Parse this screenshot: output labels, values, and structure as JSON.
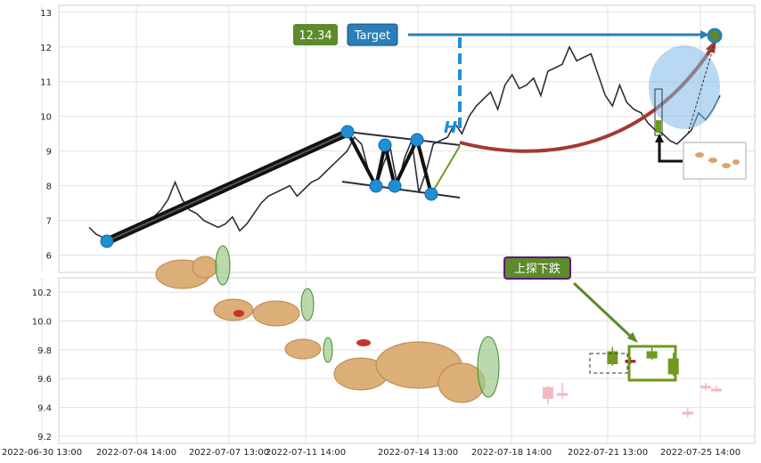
{
  "chart_data": [
    {
      "type": "line",
      "panel": "price",
      "ylim": [
        5.5,
        13.2
      ],
      "yticks": [
        6,
        7,
        8,
        9,
        10,
        11,
        12,
        13
      ],
      "xlim": [
        0,
        176
      ],
      "series": [
        {
          "color": "#2b2f3a",
          "x": [
            0,
            2,
            4,
            6,
            8,
            10,
            12,
            14,
            16,
            18,
            20,
            22,
            24,
            26,
            28,
            30,
            32,
            34,
            36,
            38,
            40,
            42,
            44,
            46,
            48,
            50,
            52,
            54,
            56,
            58,
            60,
            62,
            64,
            66,
            68,
            70,
            72,
            74,
            76,
            78,
            80,
            82,
            84,
            86,
            88,
            90,
            92,
            94,
            96,
            98,
            100,
            102,
            104,
            106,
            108,
            110,
            112,
            114,
            116,
            118,
            120,
            122,
            124,
            126,
            128,
            130,
            132,
            134,
            136,
            138,
            140,
            142,
            144,
            146,
            148,
            150,
            152,
            154,
            156,
            158,
            160,
            162,
            164,
            166,
            168,
            170,
            172,
            174,
            176
          ],
          "values": [
            6.8,
            6.6,
            6.5,
            6.5,
            6.6,
            6.7,
            6.8,
            6.9,
            7.0,
            7.1,
            7.3,
            7.6,
            8.1,
            7.6,
            7.3,
            7.2,
            7.0,
            6.9,
            6.8,
            6.9,
            7.1,
            6.7,
            6.9,
            7.2,
            7.5,
            7.7,
            7.8,
            7.9,
            8.0,
            7.7,
            7.9,
            8.1,
            8.2,
            8.4,
            8.6,
            8.8,
            9.0,
            9.4,
            9.2,
            8.4,
            7.9,
            8.6,
            9.1,
            8.0,
            8.8,
            9.3,
            7.8,
            8.4,
            9.2,
            9.3,
            9.4,
            9.8,
            9.5,
            10.0,
            10.3,
            10.5,
            10.7,
            10.2,
            10.9,
            11.2,
            10.8,
            10.9,
            11.1,
            10.6,
            11.3,
            11.4,
            11.5,
            12.0,
            11.6,
            11.7,
            11.8,
            11.2,
            10.6,
            10.3,
            10.9,
            10.4,
            10.2,
            10.1,
            9.8,
            9.6,
            9.5,
            9.3,
            9.2,
            9.4,
            9.6,
            10.1,
            9.9,
            10.2,
            10.6
          ]
        }
      ],
      "annotations": {
        "target_price_label": "12.34",
        "target_text": "Target",
        "pattern_letter": "H"
      }
    },
    {
      "type": "candlestick",
      "panel": "lower",
      "ylim": [
        9.15,
        10.3
      ],
      "yticks": [
        9.2,
        9.4,
        9.6,
        9.8,
        10.0,
        10.2
      ],
      "xlim": [
        0,
        176
      ],
      "candles": [
        {
          "x": 128,
          "open": 9.46,
          "close": 9.54,
          "high": 9.55,
          "low": 9.42
        },
        {
          "x": 132,
          "open": 9.5,
          "close": 9.48,
          "high": 9.57,
          "low": 9.46
        },
        {
          "x": 146,
          "open": 9.7,
          "close": 9.79,
          "high": 9.82,
          "low": 9.69
        },
        {
          "x": 151,
          "open": 9.73,
          "close": 9.71,
          "high": 9.75,
          "low": 9.7
        },
        {
          "x": 157,
          "open": 9.74,
          "close": 9.79,
          "high": 9.83,
          "low": 9.73
        },
        {
          "x": 163,
          "open": 9.63,
          "close": 9.74,
          "high": 9.78,
          "low": 9.62
        },
        {
          "x": 167,
          "open": 9.37,
          "close": 9.35,
          "high": 9.4,
          "low": 9.33
        },
        {
          "x": 172,
          "open": 9.55,
          "close": 9.54,
          "high": 9.57,
          "low": 9.52
        },
        {
          "x": 175,
          "open": 9.52,
          "close": 9.53,
          "high": 9.55,
          "low": 9.51
        }
      ],
      "annotation_label": "上探下跌"
    }
  ],
  "x_tick_labels": [
    "2022-06-30 13:00",
    "2022-07-04 14:00",
    "2022-07-07 13:00",
    "2022-07-11 14:00",
    "2022-07-14 13:00",
    "2022-07-18 14:00",
    "2022-07-21 13:00",
    "2022-07-25 14:00"
  ],
  "colors": {
    "price_line": "#2b2f3a",
    "trend_black": "#111111",
    "pattern_marker": "#1e8fd5",
    "arc_red": "#a33a32",
    "target_blue": "#2a7fb8",
    "target_label_bg": "#5d8a2a",
    "bull_candle": "#6f9a1e",
    "bear_candle": "#9b2a22",
    "faded_candle": "#f4b8c0",
    "callout_border": "#5b1a7a"
  }
}
